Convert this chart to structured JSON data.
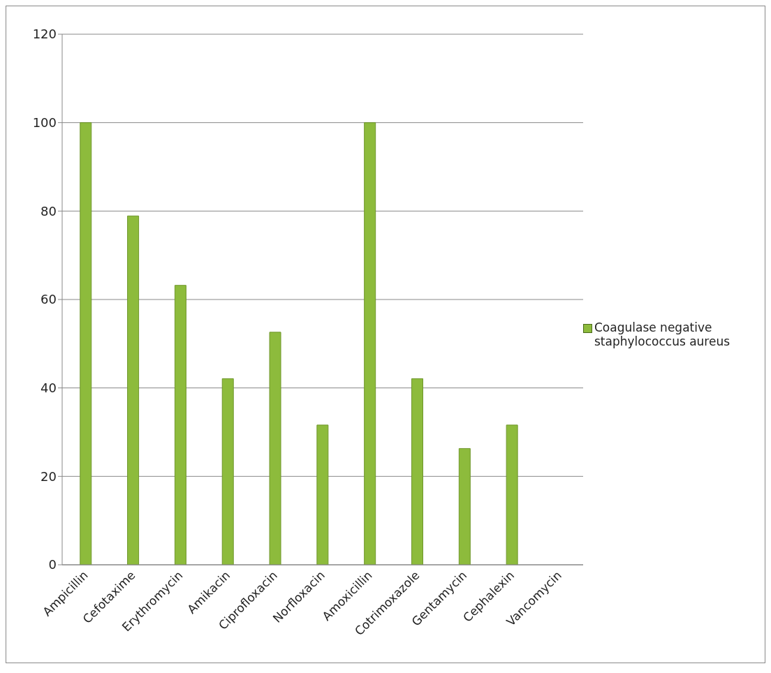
{
  "chart_data": {
    "type": "bar",
    "categories": [
      "Ampicillin",
      "Cefotaxime",
      "Erythromycin",
      "Amikacin",
      "Ciprofloxacin",
      "Norfloxacin",
      "Amoxicillin",
      "Cotrimoxazole",
      "Gentamycin",
      "Cephalexin",
      "Vancomycin"
    ],
    "series": [
      {
        "name": "Coagulase negative staphylococcus aureus",
        "color": "#8dbb3c",
        "values": [
          100,
          78.9,
          63.2,
          42.1,
          52.6,
          31.6,
          100,
          42.1,
          26.3,
          31.6,
          0
        ]
      }
    ],
    "ylim": [
      0,
      120
    ],
    "yticks": [
      0,
      20,
      40,
      60,
      80,
      100,
      120
    ],
    "grid": "y",
    "legend": "right"
  }
}
